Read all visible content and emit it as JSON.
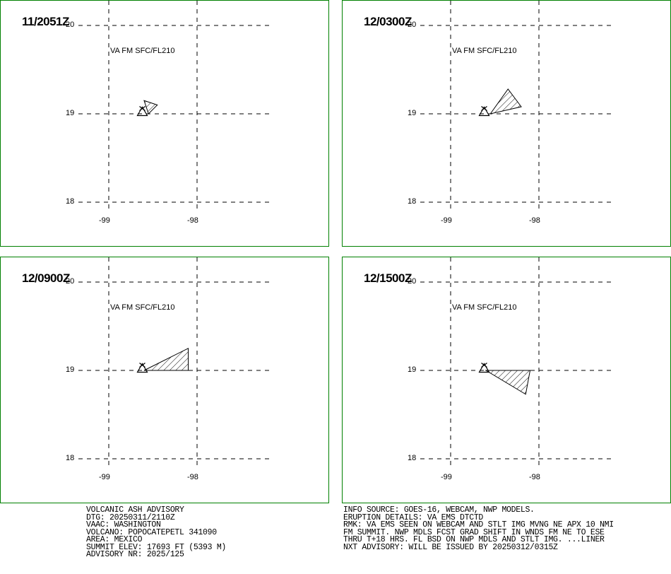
{
  "panels": [
    {
      "title": "11/2051Z",
      "label": "VA FM SFC/FL210",
      "polygon": [
        [
          -98.6,
          19.15
        ],
        [
          -98.45,
          19.1
        ],
        [
          -98.55,
          19.0
        ]
      ]
    },
    {
      "title": "12/0300Z",
      "label": "VA FM SFC/FL210",
      "polygon": [
        [
          -98.55,
          19.0
        ],
        [
          -98.35,
          19.28
        ],
        [
          -98.2,
          19.08
        ]
      ]
    },
    {
      "title": "12/0900Z",
      "label": "VA FM SFC/FL210",
      "polygon": [
        [
          -98.6,
          19.0
        ],
        [
          -98.1,
          19.25
        ],
        [
          -98.1,
          19.0
        ]
      ]
    },
    {
      "title": "12/1500Z",
      "label": "VA FM SFC/FL210",
      "polygon": [
        [
          -98.6,
          19.0
        ],
        [
          -98.1,
          19.0
        ],
        [
          -98.15,
          18.73
        ]
      ]
    }
  ],
  "axes": {
    "lat_labels": [
      "20",
      "19",
      "18"
    ],
    "lon_labels": [
      "-99",
      "-98"
    ]
  },
  "volcano": {
    "lon": -98.62,
    "lat": 19.02
  },
  "advisory_left": [
    "VOLCANIC ASH ADVISORY",
    "DTG: 20250311/2110Z",
    "VAAC: WASHINGTON",
    "VOLCANO: POPOCATEPETL 341090",
    "AREA: MEXICO",
    "SUMMIT ELEV: 17693 FT (5393 M)",
    "ADVISORY NR: 2025/125"
  ],
  "advisory_right": [
    "INFO SOURCE: GOES-16, WEBCAM, NWP MODELS.",
    "ERUPTION DETAILS: VA EMS DTCTD",
    "RMK: VA EMS SEEN ON WEBCAM AND STLT IMG MVNG NE APX 10 NMI",
    "FM SUMMIT. NWP MDLS FCST GRAD SHIFT IN WNDS FM NE TO ESE",
    "THRU T+18 HRS. FL BSD ON NWP MDLS AND STLT IMG. ...LINER",
    "NXT ADVISORY: WILL BE ISSUED BY 20250312/0315Z"
  ],
  "colors": {
    "border": "#008000",
    "ink": "#000000"
  }
}
